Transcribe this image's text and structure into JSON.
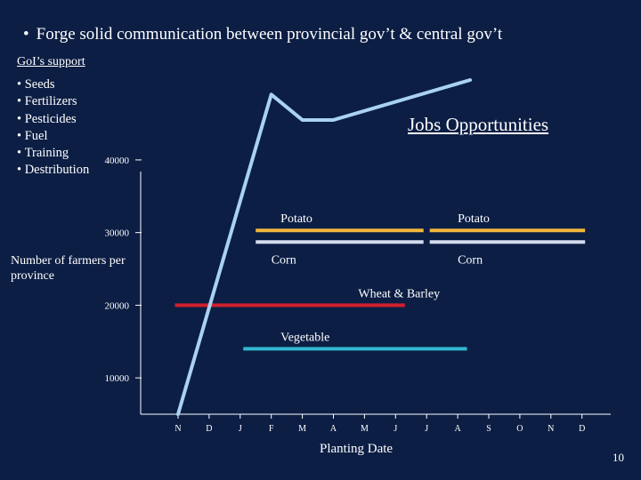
{
  "slide": {
    "headline": "Forge solid communication between provincial gov’t & central gov’t",
    "headline_bullet": "•",
    "support_title": "GoI’s support",
    "support_items": [
      "Seeds",
      "Fertilizers",
      "Pesticides",
      "Fuel",
      "Training",
      "Destribution"
    ],
    "jobs_title": "Jobs Opportunities",
    "page_number": "10"
  },
  "colors": {
    "background": "#0c1e44",
    "text": "#ffffff",
    "axis": "#ffffff",
    "potato": "#f0b63c",
    "corn": "#d4dcef",
    "wheat_barley": "#d1202d",
    "vegetable": "#32b7cf",
    "farmers_line": "#a9d2f2"
  },
  "chart_data": {
    "type": "line",
    "title": "",
    "xlabel": "Planting Date",
    "ylabel": "Number of farmers per province",
    "x_categories": [
      "N",
      "D",
      "J",
      "F",
      "M",
      "A",
      "M",
      "J",
      "J",
      "A",
      "S",
      "O",
      "N",
      "D"
    ],
    "y_ticks": [
      10000,
      20000,
      30000,
      40000
    ],
    "ylim": [
      5000,
      51000
    ],
    "grid": false,
    "series": [
      {
        "name": "",
        "color": "#a9d2f2",
        "points": [
          {
            "x": 0,
            "y": 5000
          },
          {
            "x": 3,
            "y": 49000
          },
          {
            "x": 4,
            "y": 45500
          },
          {
            "x": 5,
            "y": 45500
          },
          {
            "x": 9.4,
            "y": 51000
          }
        ]
      }
    ],
    "intervals": [
      {
        "label": "Potato",
        "color": "#f0b63c",
        "y": 30300,
        "start": 2.5,
        "end": 7.9,
        "label_x": 3.3,
        "label_pos": "above"
      },
      {
        "label": "Potato",
        "color": "#f0b63c",
        "y": 30300,
        "start": 8.1,
        "end": 13.1,
        "label_x": 9.0,
        "label_pos": "above"
      },
      {
        "label": "Corn",
        "color": "#d4dcef",
        "y": 28700,
        "start": 2.5,
        "end": 7.9,
        "label_x": 3.0,
        "label_pos": "below"
      },
      {
        "label": "Corn",
        "color": "#d4dcef",
        "y": 28700,
        "start": 8.1,
        "end": 13.1,
        "label_x": 9.0,
        "label_pos": "below"
      },
      {
        "label": "Wheat & Barley",
        "color": "#d1202d",
        "y": 20000,
        "start": -0.1,
        "end": 7.3,
        "label_x": 5.8,
        "label_pos": "above"
      },
      {
        "label": "Vegetable",
        "color": "#32b7cf",
        "y": 14000,
        "start": 2.1,
        "end": 9.3,
        "label_x": 3.3,
        "label_pos": "above"
      }
    ]
  }
}
